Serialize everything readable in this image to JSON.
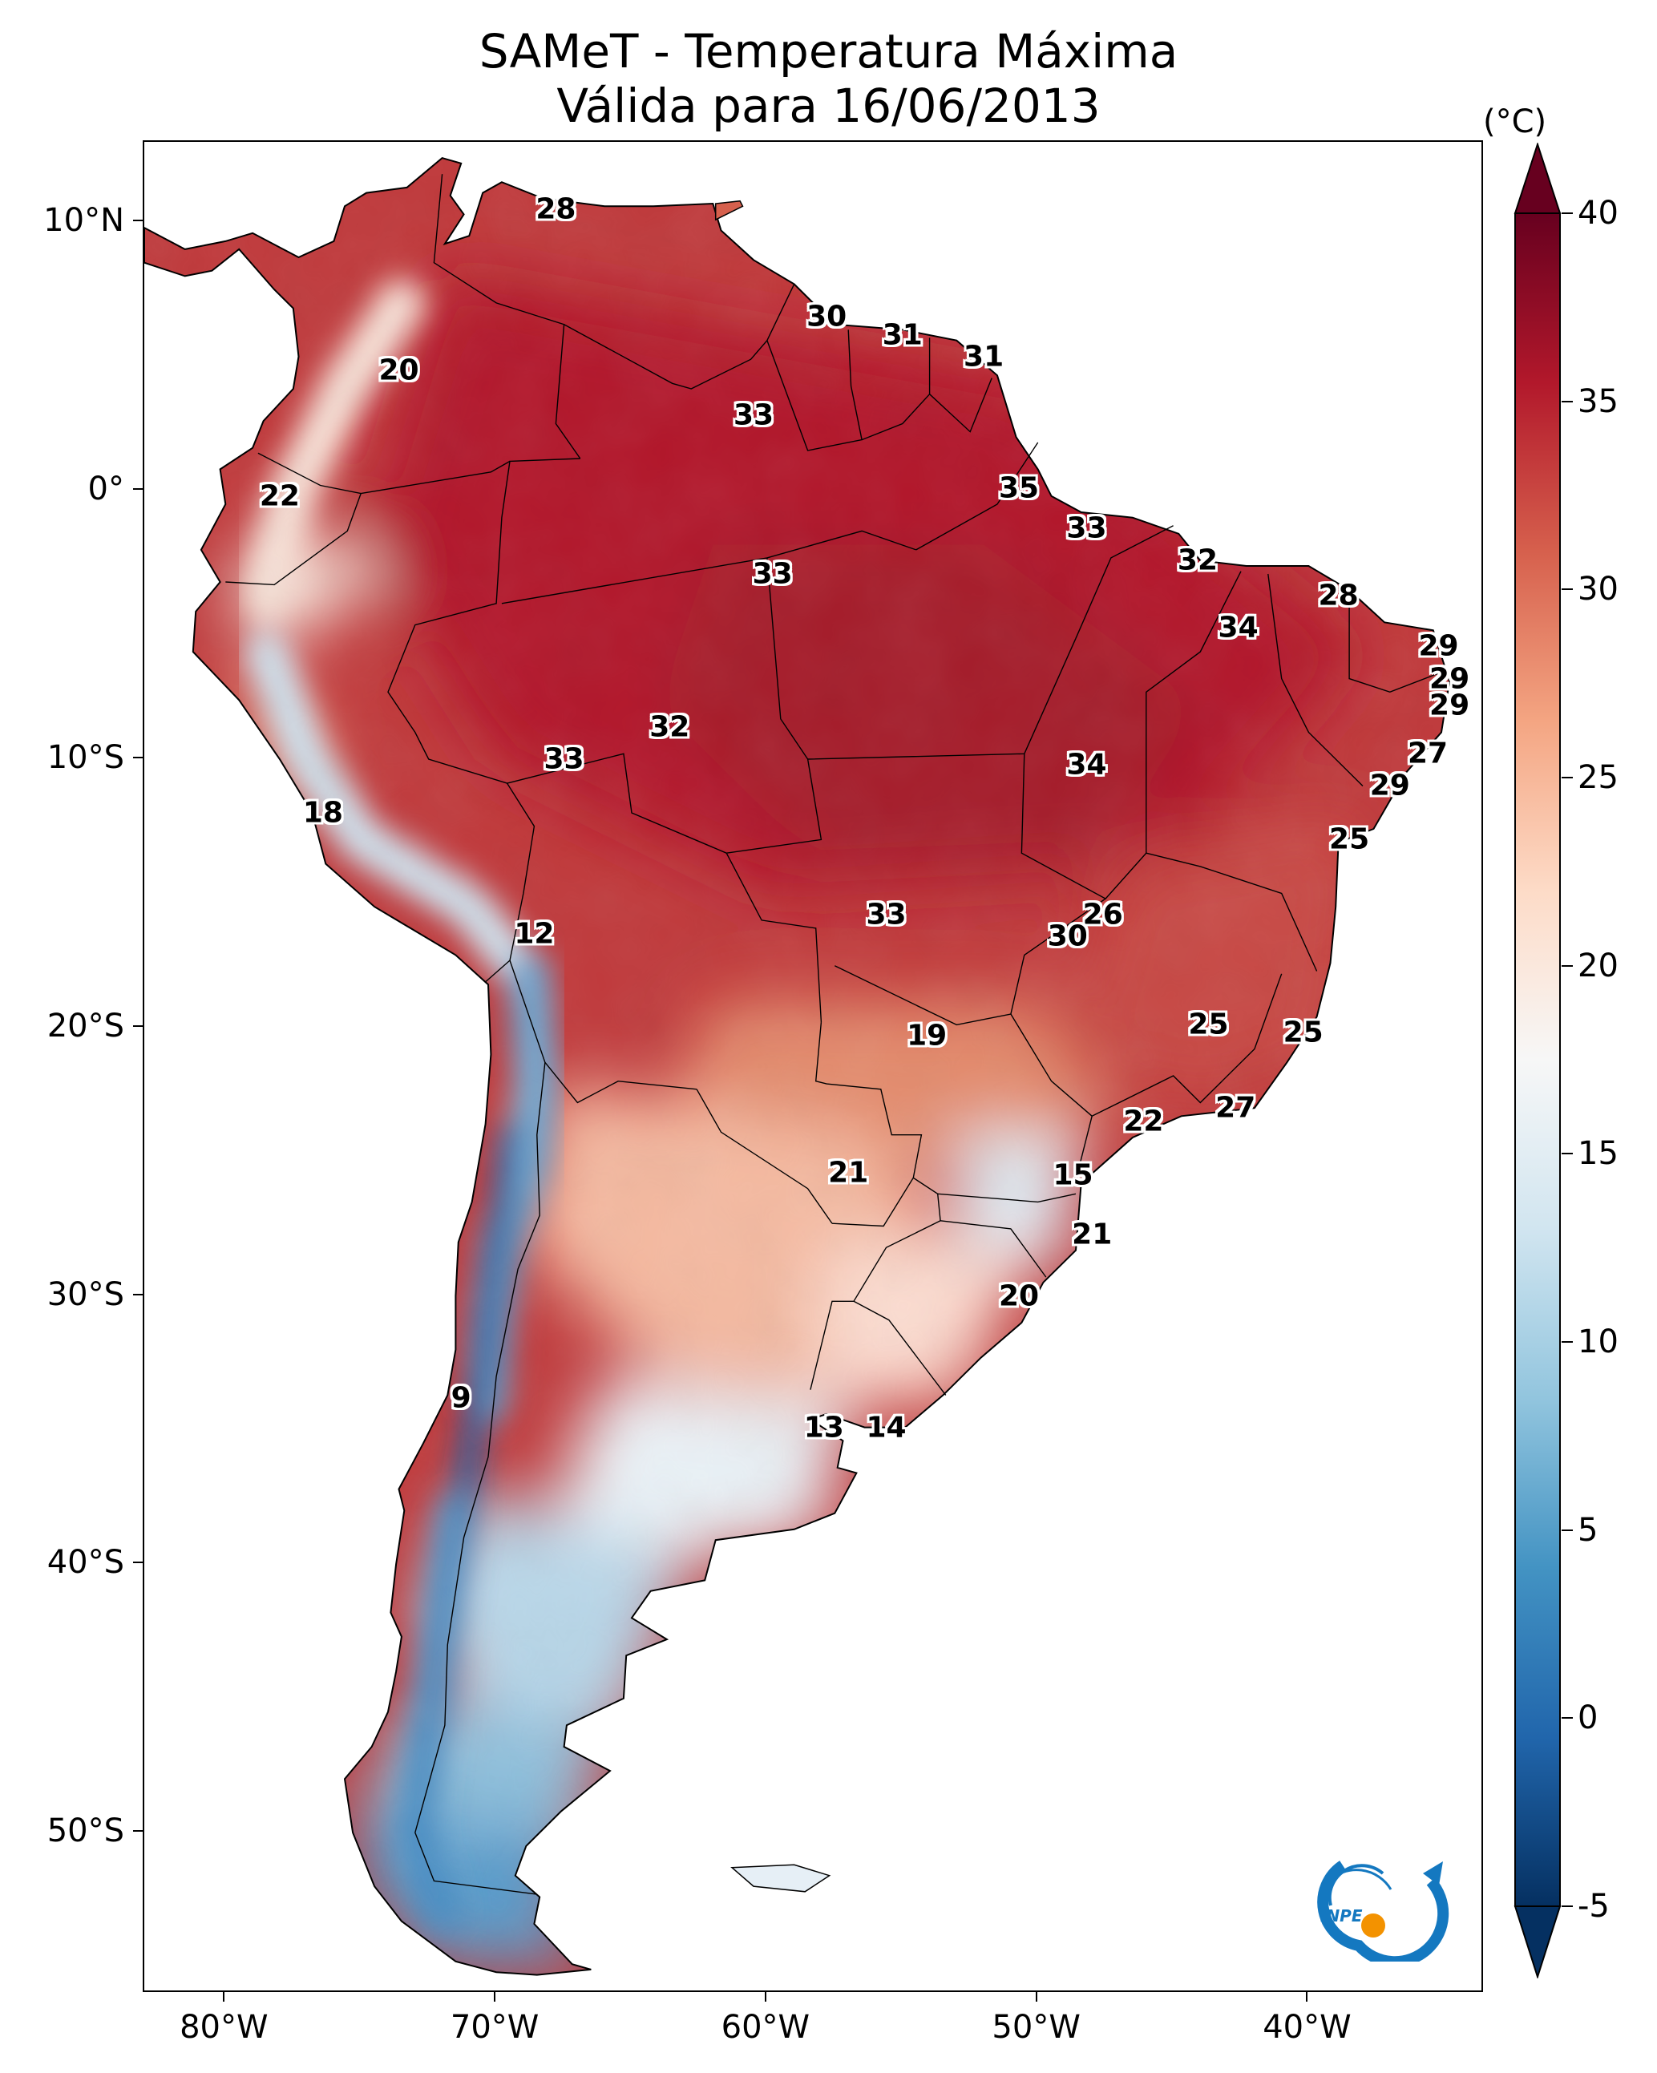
{
  "title": {
    "line1": "SAMeT - Temperatura Máxima",
    "line2": "Válida para 16/06/2013"
  },
  "map": {
    "extent": {
      "lon_min": -83,
      "lon_max": -33.5,
      "lat_min": -56,
      "lat_max": 13
    },
    "x_ticks": [
      {
        "lon": -80,
        "label": "80°W"
      },
      {
        "lon": -70,
        "label": "70°W"
      },
      {
        "lon": -60,
        "label": "60°W"
      },
      {
        "lon": -50,
        "label": "50°W"
      },
      {
        "lon": -40,
        "label": "40°W"
      }
    ],
    "y_ticks": [
      {
        "lat": 10,
        "label": "10°N"
      },
      {
        "lat": 0,
        "label": "0°"
      },
      {
        "lat": -10,
        "label": "10°S"
      },
      {
        "lat": -20,
        "label": "20°S"
      },
      {
        "lat": -30,
        "label": "30°S"
      },
      {
        "lat": -40,
        "label": "40°S"
      },
      {
        "lat": -50,
        "label": "50°S"
      }
    ],
    "contour_labels": [
      {
        "text": "28",
        "lon": -67.8,
        "lat": 10.5
      },
      {
        "text": "30",
        "lon": -57.8,
        "lat": 6.5
      },
      {
        "text": "31",
        "lon": -55.0,
        "lat": 5.8
      },
      {
        "text": "31",
        "lon": -52.0,
        "lat": 5.0
      },
      {
        "text": "20",
        "lon": -73.6,
        "lat": 4.5
      },
      {
        "text": "33",
        "lon": -60.5,
        "lat": 2.8
      },
      {
        "text": "22",
        "lon": -78.0,
        "lat": -0.2
      },
      {
        "text": "35",
        "lon": -50.7,
        "lat": 0.1
      },
      {
        "text": "33",
        "lon": -48.2,
        "lat": -1.4
      },
      {
        "text": "33",
        "lon": -59.8,
        "lat": -3.1
      },
      {
        "text": "32",
        "lon": -44.1,
        "lat": -2.6
      },
      {
        "text": "28",
        "lon": -38.9,
        "lat": -3.9
      },
      {
        "text": "34",
        "lon": -42.6,
        "lat": -5.1
      },
      {
        "text": "29",
        "lon": -35.2,
        "lat": -5.8
      },
      {
        "text": "29",
        "lon": -34.8,
        "lat": -7.0
      },
      {
        "text": "29",
        "lon": -34.8,
        "lat": -8.0
      },
      {
        "text": "32",
        "lon": -63.6,
        "lat": -8.8
      },
      {
        "text": "27",
        "lon": -35.6,
        "lat": -9.8
      },
      {
        "text": "33",
        "lon": -67.5,
        "lat": -10.0
      },
      {
        "text": "34",
        "lon": -48.2,
        "lat": -10.2
      },
      {
        "text": "29",
        "lon": -37.0,
        "lat": -11.0
      },
      {
        "text": "18",
        "lon": -76.4,
        "lat": -12.0
      },
      {
        "text": "25",
        "lon": -38.5,
        "lat": -13.0
      },
      {
        "text": "26",
        "lon": -47.6,
        "lat": -15.8
      },
      {
        "text": "33",
        "lon": -55.6,
        "lat": -15.8
      },
      {
        "text": "30",
        "lon": -48.9,
        "lat": -16.6
      },
      {
        "text": "12",
        "lon": -68.6,
        "lat": -16.5
      },
      {
        "text": "25",
        "lon": -43.7,
        "lat": -19.9
      },
      {
        "text": "19",
        "lon": -54.1,
        "lat": -20.3
      },
      {
        "text": "25",
        "lon": -40.2,
        "lat": -20.2
      },
      {
        "text": "27",
        "lon": -42.7,
        "lat": -23.0
      },
      {
        "text": "22",
        "lon": -46.1,
        "lat": -23.5
      },
      {
        "text": "21",
        "lon": -57.0,
        "lat": -25.4
      },
      {
        "text": "15",
        "lon": -48.7,
        "lat": -25.5
      },
      {
        "text": "21",
        "lon": -48.0,
        "lat": -27.7
      },
      {
        "text": "20",
        "lon": -50.7,
        "lat": -30.0
      },
      {
        "text": "9",
        "lon": -71.3,
        "lat": -33.8
      },
      {
        "text": "13",
        "lon": -57.9,
        "lat": -34.9
      },
      {
        "text": "14",
        "lon": -55.6,
        "lat": -34.9
      }
    ]
  },
  "colorbar": {
    "unit": "(°C)",
    "vmin": -5,
    "vmax": 40,
    "ticks": [
      "40",
      "35",
      "30",
      "25",
      "20",
      "15",
      "10",
      "5",
      "0",
      "-5"
    ],
    "colors": [
      "#053061",
      "#2166ac",
      "#4393c3",
      "#92c5de",
      "#d1e5f0",
      "#f7f7f7",
      "#fddbc7",
      "#f4a582",
      "#d6604d",
      "#b2182b",
      "#67001f"
    ]
  },
  "logo": {
    "text": "INPE",
    "colors": {
      "ring": "#1478c0",
      "dot": "#f39200"
    }
  }
}
